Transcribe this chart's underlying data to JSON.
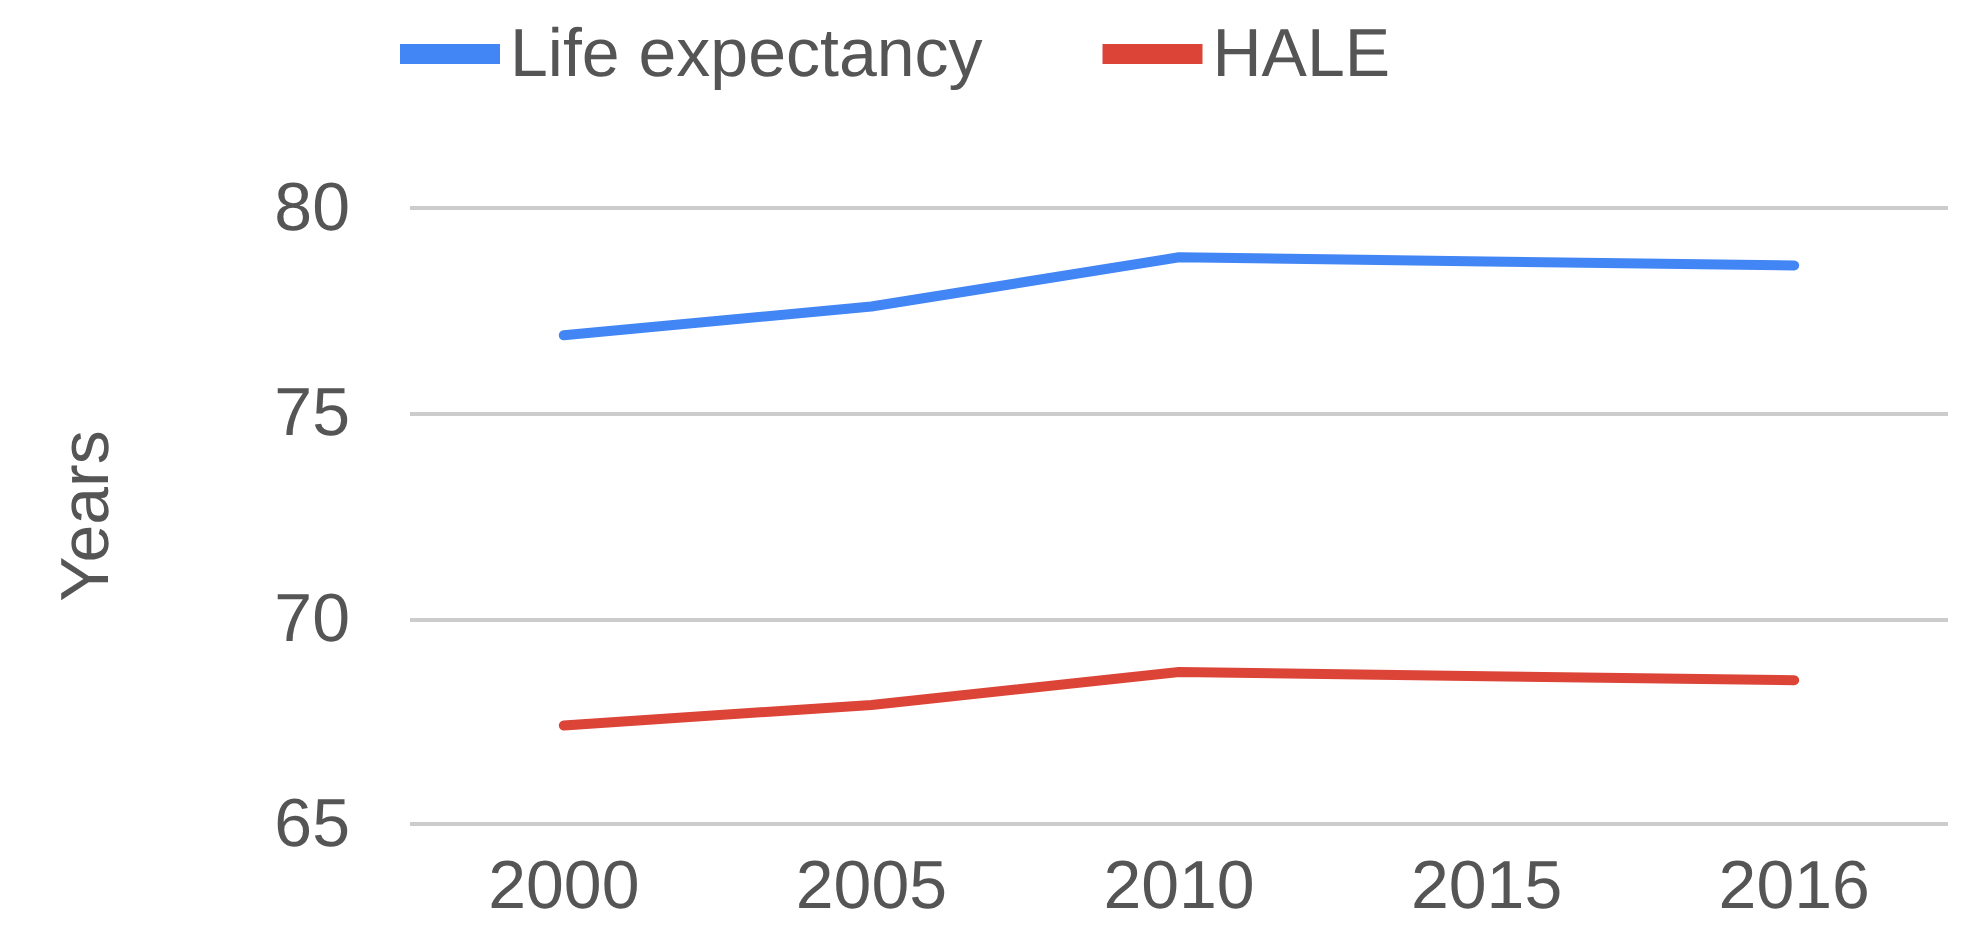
{
  "chart_data": {
    "type": "line",
    "ylabel": "Years",
    "categories": [
      "2000",
      "2005",
      "2010",
      "2015",
      "2016"
    ],
    "series": [
      {
        "name": "Life expectancy",
        "color": "#4285f4",
        "values": [
          76.9,
          77.6,
          78.8,
          78.7,
          78.6
        ]
      },
      {
        "name": "HALE",
        "color": "#db4437",
        "values": [
          67.4,
          67.9,
          68.7,
          68.6,
          68.5
        ]
      }
    ],
    "ylim": [
      65,
      80
    ],
    "yticks": [
      65,
      70,
      75,
      80
    ],
    "grid": "y",
    "legend": "top left",
    "marker": "none",
    "line_style": "solid"
  }
}
